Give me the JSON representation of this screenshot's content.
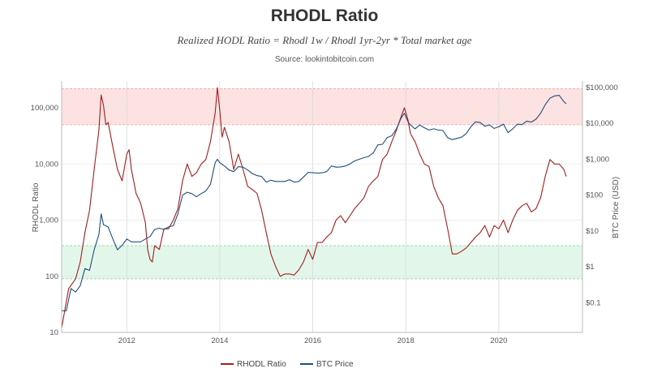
{
  "title": "RHODL Ratio",
  "subtitle": "Realized HODL Ratio = Rhodl 1w / Rhodl 1yr-2yr * Total market age",
  "source": "Source: lookintobitcoin.com",
  "colors": {
    "rhodl": "#a31d1d",
    "btc": "#1f4e79",
    "upper_band": "#fde2e2",
    "lower_band": "#e2f7ea"
  },
  "chart_data": {
    "type": "line",
    "x_range": [
      2010.6,
      2021.8
    ],
    "x_ticks": [
      {
        "value": 2012,
        "label": "2012"
      },
      {
        "value": 2014,
        "label": "2014"
      },
      {
        "value": 2016,
        "label": "2016"
      },
      {
        "value": 2018,
        "label": "2018"
      },
      {
        "value": 2020,
        "label": "2020"
      }
    ],
    "left_axis": {
      "label": "RHODL Ratio",
      "scale": "log",
      "range": [
        10,
        300000
      ],
      "ticks": [
        {
          "value": 10,
          "label": "10"
        },
        {
          "value": 100,
          "label": "100"
        },
        {
          "value": 1000,
          "label": "1,000"
        },
        {
          "value": 10000,
          "label": "10,000"
        },
        {
          "value": 100000,
          "label": "100,000"
        }
      ]
    },
    "right_axis": {
      "label": "BTC Price (USD)",
      "scale": "log",
      "range": [
        0.015,
        150000
      ],
      "ticks": [
        {
          "value": 0.1,
          "label": "$0.1"
        },
        {
          "value": 1,
          "label": "$1"
        },
        {
          "value": 10,
          "label": "$10"
        },
        {
          "value": 100,
          "label": "$100"
        },
        {
          "value": 1000,
          "label": "$1,000"
        },
        {
          "value": 10000,
          "label": "$10,000"
        },
        {
          "value": 100000,
          "label": "$100,000"
        }
      ]
    },
    "bands": [
      {
        "name": "upper",
        "from": 50000,
        "to": 220000
      },
      {
        "name": "lower",
        "from": 90,
        "to": 350
      }
    ],
    "series": [
      {
        "name": "RHODL Ratio",
        "axis": "left",
        "points": [
          [
            2010.6,
            12
          ],
          [
            2010.75,
            60
          ],
          [
            2010.9,
            90
          ],
          [
            2011.0,
            180
          ],
          [
            2011.1,
            600
          ],
          [
            2011.2,
            1500
          ],
          [
            2011.3,
            8000
          ],
          [
            2011.4,
            40000
          ],
          [
            2011.45,
            170000
          ],
          [
            2011.5,
            110000
          ],
          [
            2011.55,
            50000
          ],
          [
            2011.6,
            55000
          ],
          [
            2011.7,
            20000
          ],
          [
            2011.8,
            8000
          ],
          [
            2011.9,
            5000
          ],
          [
            2012.0,
            15000
          ],
          [
            2012.05,
            18000
          ],
          [
            2012.1,
            8000
          ],
          [
            2012.2,
            3000
          ],
          [
            2012.3,
            2000
          ],
          [
            2012.4,
            900
          ],
          [
            2012.45,
            300
          ],
          [
            2012.5,
            200
          ],
          [
            2012.55,
            180
          ],
          [
            2012.6,
            350
          ],
          [
            2012.7,
            300
          ],
          [
            2012.8,
            700
          ],
          [
            2012.9,
            700
          ],
          [
            2013.0,
            1000
          ],
          [
            2013.1,
            1600
          ],
          [
            2013.2,
            5000
          ],
          [
            2013.3,
            10000
          ],
          [
            2013.4,
            6000
          ],
          [
            2013.5,
            7000
          ],
          [
            2013.6,
            10000
          ],
          [
            2013.7,
            12000
          ],
          [
            2013.8,
            25000
          ],
          [
            2013.9,
            80000
          ],
          [
            2013.95,
            230000
          ],
          [
            2014.0,
            90000
          ],
          [
            2014.05,
            30000
          ],
          [
            2014.1,
            45000
          ],
          [
            2014.2,
            25000
          ],
          [
            2014.3,
            8000
          ],
          [
            2014.4,
            15000
          ],
          [
            2014.5,
            8000
          ],
          [
            2014.6,
            4000
          ],
          [
            2014.7,
            3500
          ],
          [
            2014.8,
            3000
          ],
          [
            2014.9,
            1500
          ],
          [
            2015.0,
            600
          ],
          [
            2015.1,
            250
          ],
          [
            2015.2,
            150
          ],
          [
            2015.3,
            100
          ],
          [
            2015.4,
            110
          ],
          [
            2015.5,
            110
          ],
          [
            2015.6,
            105
          ],
          [
            2015.7,
            130
          ],
          [
            2015.8,
            180
          ],
          [
            2015.9,
            300
          ],
          [
            2016.0,
            200
          ],
          [
            2016.1,
            400
          ],
          [
            2016.2,
            400
          ],
          [
            2016.3,
            500
          ],
          [
            2016.4,
            600
          ],
          [
            2016.5,
            1000
          ],
          [
            2016.6,
            1200
          ],
          [
            2016.7,
            900
          ],
          [
            2016.8,
            1200
          ],
          [
            2016.9,
            1600
          ],
          [
            2017.0,
            2000
          ],
          [
            2017.1,
            2500
          ],
          [
            2017.2,
            4000
          ],
          [
            2017.3,
            5000
          ],
          [
            2017.4,
            6000
          ],
          [
            2017.5,
            12000
          ],
          [
            2017.6,
            15000
          ],
          [
            2017.7,
            25000
          ],
          [
            2017.8,
            40000
          ],
          [
            2017.9,
            70000
          ],
          [
            2017.97,
            100000
          ],
          [
            2018.05,
            60000
          ],
          [
            2018.1,
            35000
          ],
          [
            2018.2,
            25000
          ],
          [
            2018.3,
            15000
          ],
          [
            2018.4,
            10000
          ],
          [
            2018.5,
            9000
          ],
          [
            2018.6,
            4000
          ],
          [
            2018.7,
            2500
          ],
          [
            2018.8,
            1800
          ],
          [
            2018.9,
            700
          ],
          [
            2019.0,
            250
          ],
          [
            2019.1,
            250
          ],
          [
            2019.2,
            280
          ],
          [
            2019.3,
            320
          ],
          [
            2019.4,
            400
          ],
          [
            2019.5,
            500
          ],
          [
            2019.6,
            600
          ],
          [
            2019.7,
            800
          ],
          [
            2019.8,
            500
          ],
          [
            2019.9,
            800
          ],
          [
            2020.0,
            700
          ],
          [
            2020.1,
            1000
          ],
          [
            2020.2,
            600
          ],
          [
            2020.3,
            1000
          ],
          [
            2020.4,
            1500
          ],
          [
            2020.5,
            1800
          ],
          [
            2020.6,
            2000
          ],
          [
            2020.7,
            1400
          ],
          [
            2020.8,
            1600
          ],
          [
            2020.9,
            2500
          ],
          [
            2021.0,
            6000
          ],
          [
            2021.1,
            12000
          ],
          [
            2021.2,
            10000
          ],
          [
            2021.3,
            10000
          ],
          [
            2021.4,
            8000
          ],
          [
            2021.45,
            6000
          ]
        ]
      },
      {
        "name": "BTC Price",
        "axis": "right",
        "points": [
          [
            2010.6,
            0.06
          ],
          [
            2010.7,
            0.06
          ],
          [
            2010.8,
            0.25
          ],
          [
            2010.9,
            0.2
          ],
          [
            2011.0,
            0.3
          ],
          [
            2011.1,
            0.9
          ],
          [
            2011.2,
            0.8
          ],
          [
            2011.3,
            3
          ],
          [
            2011.4,
            8
          ],
          [
            2011.45,
            30
          ],
          [
            2011.5,
            15
          ],
          [
            2011.6,
            13
          ],
          [
            2011.7,
            6
          ],
          [
            2011.8,
            3
          ],
          [
            2011.9,
            4
          ],
          [
            2012.0,
            6
          ],
          [
            2012.1,
            5
          ],
          [
            2012.2,
            5
          ],
          [
            2012.3,
            5
          ],
          [
            2012.4,
            6
          ],
          [
            2012.5,
            7
          ],
          [
            2012.6,
            11
          ],
          [
            2012.7,
            12
          ],
          [
            2012.8,
            11
          ],
          [
            2012.9,
            13
          ],
          [
            2013.0,
            14
          ],
          [
            2013.1,
            30
          ],
          [
            2013.2,
            100
          ],
          [
            2013.3,
            120
          ],
          [
            2013.4,
            110
          ],
          [
            2013.5,
            90
          ],
          [
            2013.6,
            110
          ],
          [
            2013.7,
            130
          ],
          [
            2013.8,
            200
          ],
          [
            2013.9,
            800
          ],
          [
            2013.95,
            1000
          ],
          [
            2014.0,
            800
          ],
          [
            2014.1,
            650
          ],
          [
            2014.2,
            500
          ],
          [
            2014.3,
            450
          ],
          [
            2014.4,
            620
          ],
          [
            2014.5,
            600
          ],
          [
            2014.6,
            500
          ],
          [
            2014.7,
            400
          ],
          [
            2014.8,
            350
          ],
          [
            2014.9,
            330
          ],
          [
            2015.0,
            230
          ],
          [
            2015.1,
            260
          ],
          [
            2015.2,
            240
          ],
          [
            2015.3,
            240
          ],
          [
            2015.4,
            240
          ],
          [
            2015.5,
            270
          ],
          [
            2015.6,
            230
          ],
          [
            2015.7,
            240
          ],
          [
            2015.8,
            320
          ],
          [
            2015.9,
            430
          ],
          [
            2016.0,
            420
          ],
          [
            2016.1,
            410
          ],
          [
            2016.2,
            420
          ],
          [
            2016.3,
            450
          ],
          [
            2016.4,
            650
          ],
          [
            2016.5,
            600
          ],
          [
            2016.6,
            610
          ],
          [
            2016.7,
            650
          ],
          [
            2016.8,
            740
          ],
          [
            2016.9,
            900
          ],
          [
            2017.0,
            1000
          ],
          [
            2017.1,
            1100
          ],
          [
            2017.2,
            1200
          ],
          [
            2017.3,
            1500
          ],
          [
            2017.4,
            2500
          ],
          [
            2017.5,
            2600
          ],
          [
            2017.6,
            4000
          ],
          [
            2017.7,
            4500
          ],
          [
            2017.8,
            7000
          ],
          [
            2017.9,
            14000
          ],
          [
            2017.97,
            19000
          ],
          [
            2018.05,
            11000
          ],
          [
            2018.1,
            9000
          ],
          [
            2018.2,
            7000
          ],
          [
            2018.3,
            9000
          ],
          [
            2018.4,
            7500
          ],
          [
            2018.5,
            6500
          ],
          [
            2018.6,
            7000
          ],
          [
            2018.7,
            6500
          ],
          [
            2018.8,
            6300
          ],
          [
            2018.9,
            4000
          ],
          [
            2019.0,
            3500
          ],
          [
            2019.1,
            3800
          ],
          [
            2019.2,
            4100
          ],
          [
            2019.3,
            5200
          ],
          [
            2019.4,
            8000
          ],
          [
            2019.5,
            11000
          ],
          [
            2019.6,
            10500
          ],
          [
            2019.7,
            8300
          ],
          [
            2019.8,
            9000
          ],
          [
            2019.9,
            7200
          ],
          [
            2020.0,
            8000
          ],
          [
            2020.1,
            9500
          ],
          [
            2020.2,
            5500
          ],
          [
            2020.3,
            7000
          ],
          [
            2020.4,
            9500
          ],
          [
            2020.5,
            9200
          ],
          [
            2020.6,
            11500
          ],
          [
            2020.7,
            10800
          ],
          [
            2020.8,
            13000
          ],
          [
            2020.9,
            19000
          ],
          [
            2021.0,
            33000
          ],
          [
            2021.1,
            50000
          ],
          [
            2021.2,
            58000
          ],
          [
            2021.3,
            60000
          ],
          [
            2021.4,
            40000
          ],
          [
            2021.45,
            35000
          ]
        ]
      }
    ],
    "legend": {
      "position": "bottom-center",
      "items": [
        {
          "name": "RHODL Ratio",
          "color": "#a31d1d"
        },
        {
          "name": "BTC Price",
          "color": "#1f4e79"
        }
      ]
    }
  }
}
